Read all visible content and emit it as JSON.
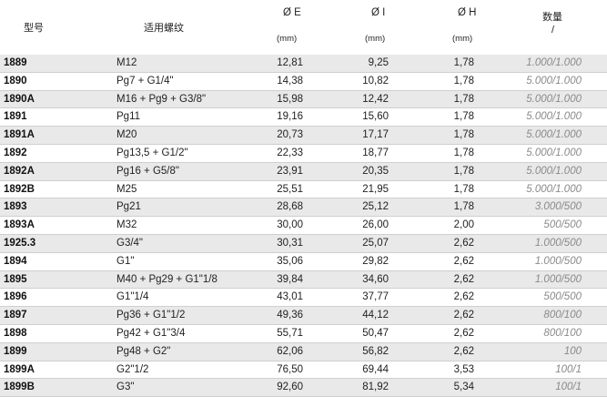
{
  "header": {
    "model": "型号",
    "thread": "适用螺纹",
    "e": "Ø E",
    "i": "Ø I",
    "h": "Ø H",
    "unit": "(mm)",
    "qty": "数量",
    "qty_sep": "/"
  },
  "rows": [
    {
      "model": "1889",
      "thread": "M12",
      "e": "12,81",
      "i": "9,25",
      "h": "1,78",
      "qty": "1.000/1.000"
    },
    {
      "model": "1890",
      "thread": "Pg7 + G1/4\"",
      "e": "14,38",
      "i": "10,82",
      "h": "1,78",
      "qty": "5.000/1.000"
    },
    {
      "model": "1890A",
      "thread": "M16 + Pg9 + G3/8\"",
      "e": "15,98",
      "i": "12,42",
      "h": "1,78",
      "qty": "5.000/1.000"
    },
    {
      "model": "1891",
      "thread": "Pg11",
      "e": "19,16",
      "i": "15,60",
      "h": "1,78",
      "qty": "5.000/1.000"
    },
    {
      "model": "1891A",
      "thread": "M20",
      "e": "20,73",
      "i": "17,17",
      "h": "1,78",
      "qty": "5.000/1.000"
    },
    {
      "model": "1892",
      "thread": "Pg13,5 + G1/2\"",
      "e": "22,33",
      "i": "18,77",
      "h": "1,78",
      "qty": "5.000/1.000"
    },
    {
      "model": "1892A",
      "thread": "Pg16 + G5/8\"",
      "e": "23,91",
      "i": "20,35",
      "h": "1,78",
      "qty": "5.000/1.000"
    },
    {
      "model": "1892B",
      "thread": "M25",
      "e": "25,51",
      "i": "21,95",
      "h": "1,78",
      "qty": "5.000/1.000"
    },
    {
      "model": "1893",
      "thread": "Pg21",
      "e": "28,68",
      "i": "25,12",
      "h": "1,78",
      "qty": "3.000/500"
    },
    {
      "model": "1893A",
      "thread": "M32",
      "e": "30,00",
      "i": "26,00",
      "h": "2,00",
      "qty": "500/500"
    },
    {
      "model": "1925.3",
      "thread": "G3/4\"",
      "e": "30,31",
      "i": "25,07",
      "h": "2,62",
      "qty": "1.000/500"
    },
    {
      "model": "1894",
      "thread": "G1\"",
      "e": "35,06",
      "i": "29,82",
      "h": "2,62",
      "qty": "1.000/500"
    },
    {
      "model": "1895",
      "thread": "M40 + Pg29 + G1\"1/8",
      "e": "39,84",
      "i": "34,60",
      "h": "2,62",
      "qty": "1.000/500"
    },
    {
      "model": "1896",
      "thread": "G1\"1/4",
      "e": "43,01",
      "i": "37,77",
      "h": "2,62",
      "qty": "500/500"
    },
    {
      "model": "1897",
      "thread": "Pg36 + G1\"1/2",
      "e": "49,36",
      "i": "44,12",
      "h": "2,62",
      "qty": "800/100"
    },
    {
      "model": "1898",
      "thread": "Pg42 + G1\"3/4",
      "e": "55,71",
      "i": "50,47",
      "h": "2,62",
      "qty": "800/100"
    },
    {
      "model": "1899",
      "thread": "Pg48 + G2\"",
      "e": "62,06",
      "i": "56,82",
      "h": "2,62",
      "qty": "100"
    },
    {
      "model": "1899A",
      "thread": "G2\"1/2",
      "e": "76,50",
      "i": "69,44",
      "h": "3,53",
      "qty": "100/1"
    },
    {
      "model": "1899B",
      "thread": "G3\"",
      "e": "92,60",
      "i": "81,92",
      "h": "5,34",
      "qty": "100/1"
    }
  ]
}
